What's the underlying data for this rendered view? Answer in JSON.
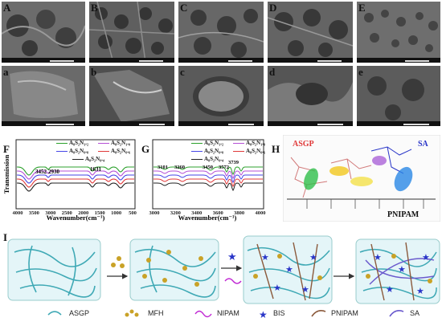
{
  "panels": {
    "top_row": [
      "A",
      "B",
      "C",
      "D",
      "E"
    ],
    "bottom_row": [
      "a",
      "b",
      "c",
      "d",
      "e"
    ]
  },
  "panel_F": {
    "label": "F",
    "ylabel": "Transmission",
    "xlabel": "Wavenumber(cm⁻¹)",
    "xticks": [
      "4000",
      "3500",
      "3000",
      "2500",
      "2000",
      "1500",
      "1000",
      "500"
    ],
    "peaks": [
      "3452",
      "2930",
      "1631"
    ],
    "legend": [
      "A₈S₂N₁.₂",
      "A₈S₂N₁.₀",
      "A₈S₂N₀.₈",
      "A₈S₂N₀.₆",
      "A₈S₂N₀.₄"
    ],
    "series_colors": [
      "#2ca02c",
      "#b44fd6",
      "#4646e6",
      "#e03a3a",
      "#222222"
    ]
  },
  "panel_G": {
    "label": "G",
    "xlabel": "Wavenumber(cm⁻¹)",
    "xticks": [
      "3000",
      "3200",
      "3400",
      "3600",
      "3800",
      "4000"
    ],
    "peaks": [
      "3101",
      "3260",
      "3450",
      "3572",
      "3739"
    ],
    "legend": [
      "A₈S₂N₁.₂",
      "A₈S₂N₁.₀",
      "A₈S₂N₀.₈",
      "A₈S₂N₀.₆",
      "A₈S₂N₀.₄"
    ]
  },
  "panel_H": {
    "label": "H",
    "asgp": "ASGP",
    "sa": "SA",
    "pnipam": "PNIPAM"
  },
  "panel_I": {
    "label": "I",
    "legend": [
      "ASGP",
      "MFH",
      "NIPAM",
      "BIS",
      "PNIPAM",
      "SA"
    ]
  },
  "colors": {
    "asgp_fiber": "#3fa9b5",
    "mfh": "#c9a227",
    "bis": "#2a36c8",
    "pnipam": "#8b5a3c",
    "sa": "#6a5acd",
    "nipam": "#c026d3"
  }
}
